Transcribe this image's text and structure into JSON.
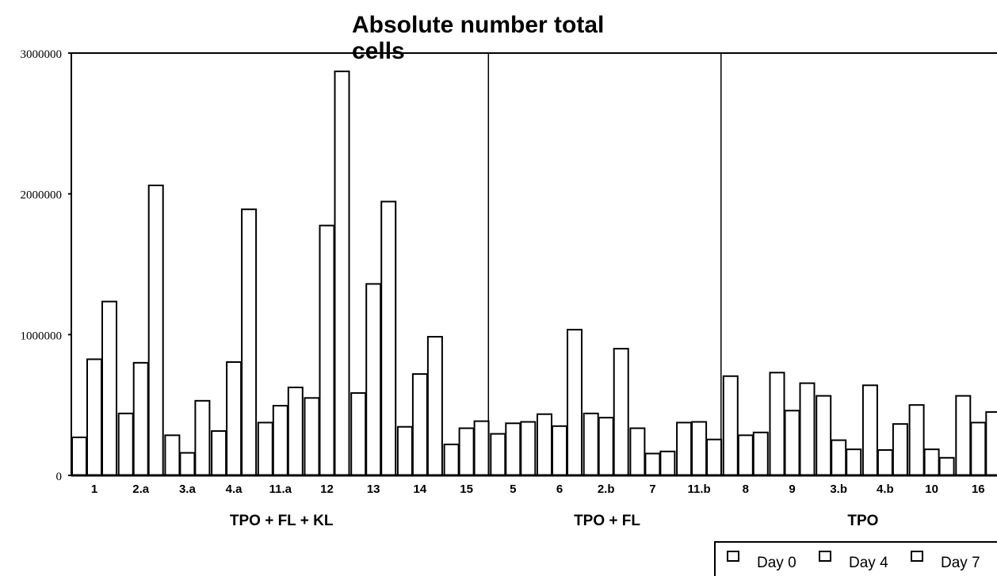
{
  "chart_data": {
    "type": "bar",
    "title_lines": [
      "Absolute number total",
      "cells"
    ],
    "xlabel": "",
    "ylabel": "",
    "ylim": [
      0,
      3000000
    ],
    "yticks": [
      "0",
      "1000000",
      "2000000",
      "3000000"
    ],
    "categories": [
      "1",
      "2.a",
      "3.a",
      "4.a",
      "11.a",
      "12",
      "13",
      "14",
      "15",
      "5",
      "6",
      "2.b",
      "7",
      "11.b",
      "8",
      "9",
      "3.b",
      "4.b",
      "10",
      "16"
    ],
    "series": [
      {
        "name": "Day 0",
        "values": [
          270000,
          440000,
          285000,
          315000,
          375000,
          550000,
          585000,
          345000,
          220000,
          295000,
          435000,
          440000,
          335000,
          375000,
          705000,
          730000,
          565000,
          640000,
          500000,
          565000
        ]
      },
      {
        "name": "Day 4",
        "values": [
          825000,
          800000,
          160000,
          805000,
          495000,
          1775000,
          1360000,
          720000,
          335000,
          370000,
          350000,
          410000,
          155000,
          380000,
          285000,
          460000,
          250000,
          180000,
          185000,
          375000
        ]
      },
      {
        "name": "Day 7",
        "values": [
          1235000,
          2060000,
          530000,
          1890000,
          625000,
          2870000,
          1945000,
          985000,
          385000,
          380000,
          1035000,
          900000,
          170000,
          255000,
          305000,
          655000,
          185000,
          365000,
          125000,
          450000
        ]
      }
    ],
    "groups": [
      {
        "label": "TPO + FL + KL",
        "categories": [
          "1",
          "2.a",
          "3.a",
          "4.a",
          "11.a",
          "12",
          "13",
          "14",
          "15"
        ]
      },
      {
        "label": "TPO + FL",
        "categories": [
          "5",
          "6",
          "2.b",
          "7",
          "11.b"
        ]
      },
      {
        "label": "TPO",
        "categories": [
          "8",
          "9",
          "3.b",
          "4.b",
          "10",
          "16"
        ]
      }
    ],
    "legend_position": "bottom-right",
    "bar_fill": "#ffffff",
    "bar_stroke": "#000000"
  }
}
